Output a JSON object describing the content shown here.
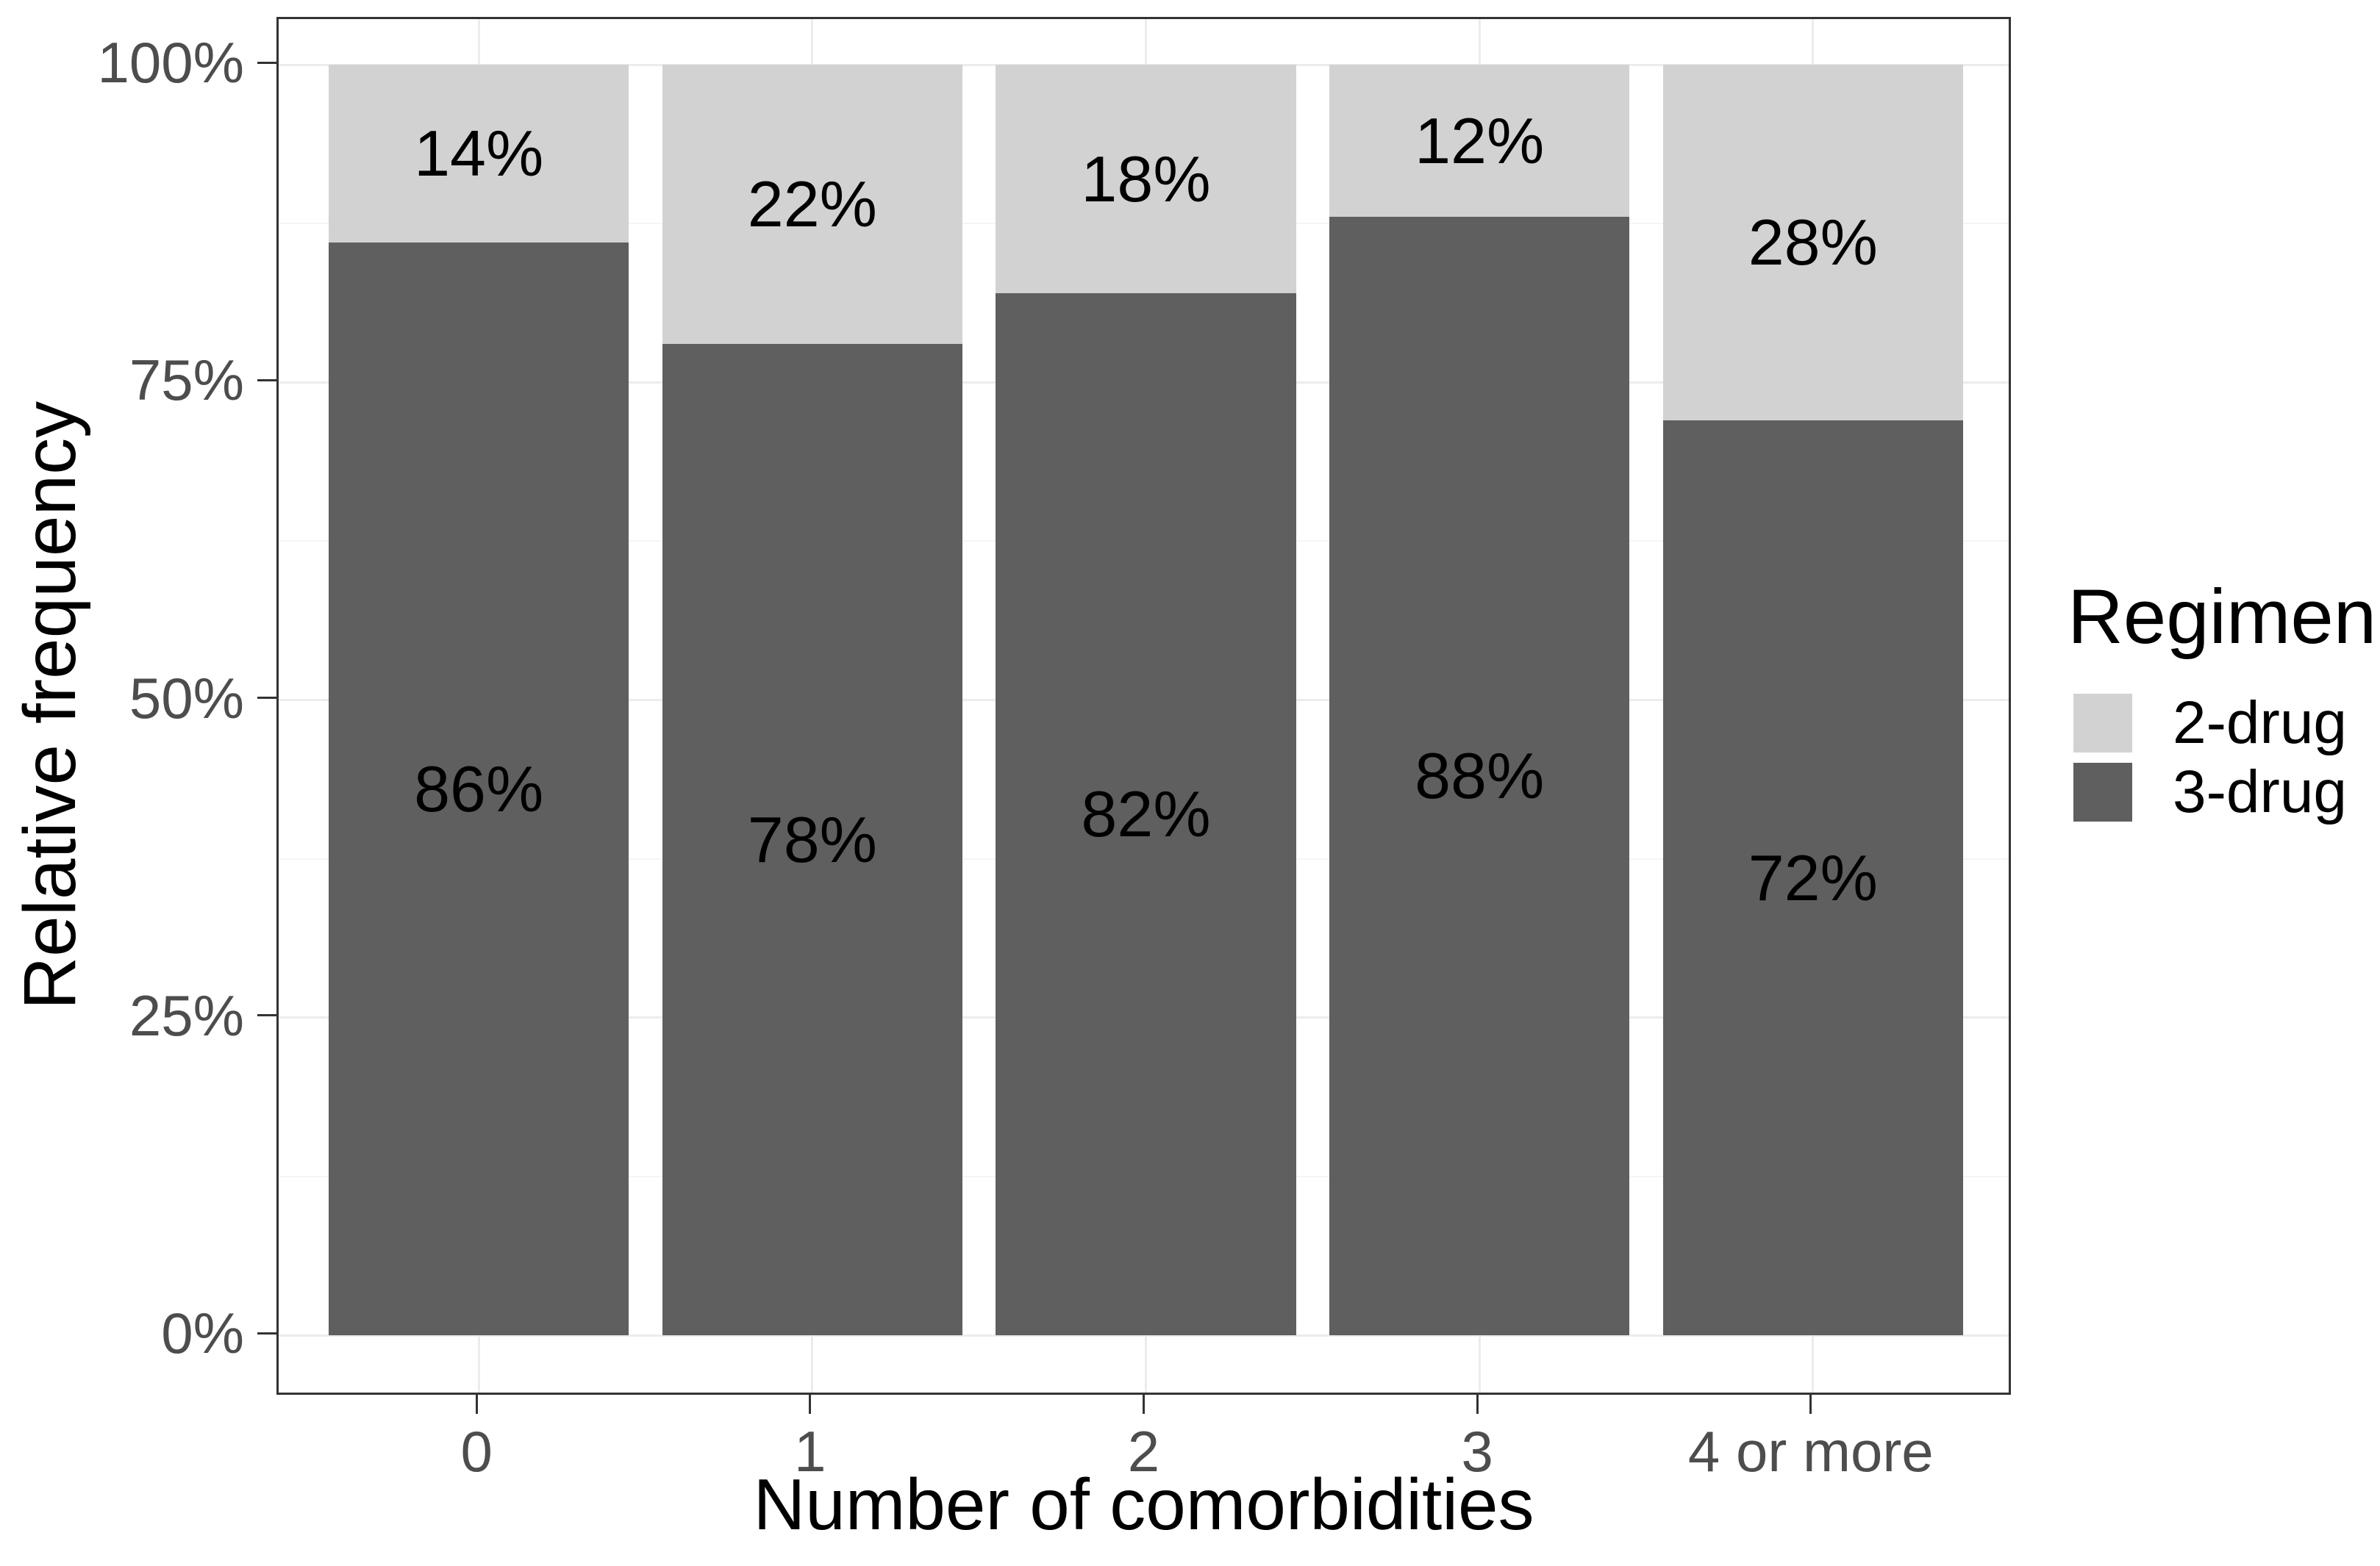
{
  "chart_data": {
    "type": "bar",
    "stacked": true,
    "orientation": "vertical",
    "title": "",
    "xlabel": "Number of comorbidities",
    "ylabel": "Relative frequency",
    "categories": [
      "0",
      "1",
      "2",
      "3",
      "4 or more"
    ],
    "series": [
      {
        "name": "3-drug",
        "color": "#5f5f5f",
        "values": [
          86,
          78,
          82,
          88,
          72
        ],
        "labels": [
          "86%",
          "78%",
          "82%",
          "88%",
          "72%"
        ]
      },
      {
        "name": "2-drug",
        "color": "#d2d2d2",
        "values": [
          14,
          22,
          18,
          12,
          28
        ],
        "labels": [
          "14%",
          "22%",
          "18%",
          "12%",
          "28%"
        ]
      }
    ],
    "ylim": [
      0,
      100
    ],
    "y_ticks": [
      {
        "value": 0,
        "label": "0%"
      },
      {
        "value": 25,
        "label": "25%"
      },
      {
        "value": 50,
        "label": "50%"
      },
      {
        "value": 75,
        "label": "75%"
      },
      {
        "value": 100,
        "label": "100%"
      }
    ],
    "grid": {
      "horizontal_major": true,
      "horizontal_minor": true,
      "vertical_major": true
    },
    "legend": {
      "title": "Regimen",
      "position": "right",
      "items": [
        {
          "label": "2-drug",
          "color": "#d2d2d2"
        },
        {
          "label": "3-drug",
          "color": "#5f5f5f"
        }
      ]
    },
    "colors": {
      "background": "#ffffff",
      "panel_border": "#333333",
      "tick_mark": "#333333",
      "tick_label": "#4d4d4d",
      "axis_title": "#000000",
      "bar_label": "#000000",
      "grid_major": "#ececec",
      "grid_minor": "#f5f5f5"
    }
  }
}
